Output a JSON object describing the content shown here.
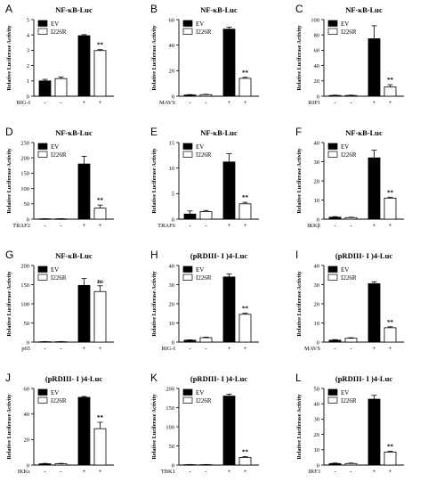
{
  "chart_data": [
    {
      "panel": "A",
      "type": "bar",
      "title": "NF-κB-Luc",
      "ylabel": "Relative Luciferase Activity",
      "ylim": [
        0,
        5
      ],
      "yticks": [
        0,
        1,
        2,
        3,
        4,
        5
      ],
      "treatment": "RIG-I",
      "signs": [
        "-",
        "-",
        "+",
        "+"
      ],
      "series": [
        {
          "name": "EV",
          "values": [
            1.0,
            3.95
          ],
          "errors": [
            0.1,
            0.07
          ],
          "fill": "black"
        },
        {
          "name": "I226R",
          "values": [
            1.15,
            2.98
          ],
          "errors": [
            0.1,
            0.06
          ],
          "fill": "white"
        }
      ],
      "significance": [
        "",
        "**"
      ]
    },
    {
      "panel": "B",
      "type": "bar",
      "title": "NF-κB-Luc",
      "ylabel": "Relative Luciferase Activity",
      "ylim": [
        0,
        60
      ],
      "yticks": [
        0,
        20,
        40,
        60
      ],
      "treatment": "MAVS",
      "signs": [
        "-",
        "-",
        "+",
        "+"
      ],
      "series": [
        {
          "name": "EV",
          "values": [
            1.0,
            52.5
          ],
          "errors": [
            0.3,
            1.5
          ],
          "fill": "black"
        },
        {
          "name": "I226R",
          "values": [
            1.2,
            14.0
          ],
          "errors": [
            0.3,
            0.8
          ],
          "fill": "white"
        }
      ],
      "significance": [
        "",
        "**"
      ]
    },
    {
      "panel": "C",
      "type": "bar",
      "title": "NF-κB-Luc",
      "ylabel": "Relative Luciferase Activity",
      "ylim": [
        0,
        100
      ],
      "yticks": [
        0,
        20,
        40,
        60,
        80,
        100
      ],
      "treatment": "RIP1",
      "signs": [
        "-",
        "-",
        "+",
        "+"
      ],
      "series": [
        {
          "name": "EV",
          "values": [
            1.0,
            75.0
          ],
          "errors": [
            0.4,
            17.0
          ],
          "fill": "black"
        },
        {
          "name": "I226R",
          "values": [
            1.0,
            12.0
          ],
          "errors": [
            0.4,
            3.0
          ],
          "fill": "white"
        }
      ],
      "significance": [
        "",
        "**"
      ]
    },
    {
      "panel": "D",
      "type": "bar",
      "title": "NF-κB-Luc",
      "ylabel": "Relative Luciferase Activity",
      "ylim": [
        0,
        250
      ],
      "yticks": [
        0,
        50,
        100,
        150,
        200,
        250
      ],
      "treatment": "TRAF2",
      "signs": [
        "-",
        "-",
        "+",
        "+"
      ],
      "series": [
        {
          "name": "EV",
          "values": [
            1.0,
            180.0
          ],
          "errors": [
            0.5,
            25.0
          ],
          "fill": "black"
        },
        {
          "name": "I226R",
          "values": [
            1.0,
            36.0
          ],
          "errors": [
            0.5,
            10.0
          ],
          "fill": "white"
        }
      ],
      "significance": [
        "",
        "**"
      ]
    },
    {
      "panel": "E",
      "type": "bar",
      "title": "NF-κB-Luc",
      "ylabel": "Relative Luciferase Activity",
      "ylim": [
        0,
        15
      ],
      "yticks": [
        0,
        5,
        10,
        15
      ],
      "treatment": "TRAF6",
      "signs": [
        "-",
        "-",
        "+",
        "+"
      ],
      "series": [
        {
          "name": "EV",
          "values": [
            1.0,
            11.2
          ],
          "errors": [
            0.6,
            1.6
          ],
          "fill": "black"
        },
        {
          "name": "I226R",
          "values": [
            1.5,
            3.0
          ],
          "errors": [
            0.2,
            0.3
          ],
          "fill": "white"
        }
      ],
      "significance": [
        "",
        "**"
      ]
    },
    {
      "panel": "F",
      "type": "bar",
      "title": "NF-κB-Luc",
      "ylabel": "Relative Luciferase Activity",
      "ylim": [
        0,
        40
      ],
      "yticks": [
        0,
        10,
        20,
        30,
        40
      ],
      "treatment": "IKKβ",
      "signs": [
        "-",
        "-",
        "+",
        "+"
      ],
      "series": [
        {
          "name": "EV",
          "values": [
            1.0,
            32.0
          ],
          "errors": [
            0.3,
            4.0
          ],
          "fill": "black"
        },
        {
          "name": "I226R",
          "values": [
            0.8,
            11.0
          ],
          "errors": [
            0.2,
            0.5
          ],
          "fill": "white"
        }
      ],
      "significance": [
        "",
        "**"
      ]
    },
    {
      "panel": "G",
      "type": "bar",
      "title": "NF-κB-Luc",
      "ylabel": "Relative Luciferase Activity",
      "ylim": [
        0,
        200
      ],
      "yticks": [
        0,
        50,
        100,
        150,
        200
      ],
      "treatment": "p65",
      "signs": [
        "-",
        "-",
        "+",
        "+"
      ],
      "series": [
        {
          "name": "EV",
          "values": [
            1.0,
            148.0
          ],
          "errors": [
            0.5,
            18.0
          ],
          "fill": "black"
        },
        {
          "name": "I226R",
          "values": [
            1.0,
            132.0
          ],
          "errors": [
            0.5,
            15.0
          ],
          "fill": "white"
        }
      ],
      "significance": [
        "",
        "ns"
      ]
    },
    {
      "panel": "H",
      "type": "bar",
      "title": "(pRDIII- I )4-Luc",
      "ylabel": "Relative Luciferase Activity",
      "ylim": [
        0,
        40
      ],
      "yticks": [
        0,
        10,
        20,
        30,
        40
      ],
      "treatment": "RIG-I",
      "signs": [
        "-",
        "-",
        "+",
        "+"
      ],
      "series": [
        {
          "name": "EV",
          "values": [
            1.0,
            34.0
          ],
          "errors": [
            0.2,
            1.5
          ],
          "fill": "black"
        },
        {
          "name": "I226R",
          "values": [
            2.3,
            14.5
          ],
          "errors": [
            0.3,
            0.6
          ],
          "fill": "white"
        }
      ],
      "significance": [
        "",
        "**"
      ]
    },
    {
      "panel": "I",
      "type": "bar",
      "title": "(pRDIII- I )4-Luc",
      "ylabel": "Relative Luciferase Activity",
      "ylim": [
        0,
        40
      ],
      "yticks": [
        0,
        10,
        20,
        30,
        40
      ],
      "treatment": "MAVS",
      "signs": [
        "-",
        "-",
        "+",
        "+"
      ],
      "series": [
        {
          "name": "EV",
          "values": [
            1.0,
            30.5
          ],
          "errors": [
            0.3,
            1.0
          ],
          "fill": "black"
        },
        {
          "name": "I226R",
          "values": [
            2.0,
            7.5
          ],
          "errors": [
            0.3,
            0.5
          ],
          "fill": "white"
        }
      ],
      "significance": [
        "",
        "**"
      ]
    },
    {
      "panel": "J",
      "type": "bar",
      "title": "(pRDIII- I )4-Luc",
      "ylabel": "Relative Luciferase Activity",
      "ylim": [
        0,
        60
      ],
      "yticks": [
        0,
        20,
        40,
        60
      ],
      "treatment": "IKKε",
      "signs": [
        "-",
        "-",
        "+",
        "+"
      ],
      "series": [
        {
          "name": "EV",
          "values": [
            1.0,
            53.0
          ],
          "errors": [
            0.3,
            0.7
          ],
          "fill": "black"
        },
        {
          "name": "I226R",
          "values": [
            1.0,
            28.5
          ],
          "errors": [
            0.3,
            5.0
          ],
          "fill": "white"
        }
      ],
      "significance": [
        "",
        "**"
      ]
    },
    {
      "panel": "K",
      "type": "bar",
      "title": "(pRDIII- I )4-Luc",
      "ylabel": "Relative Luciferase Activity",
      "ylim": [
        0,
        200
      ],
      "yticks": [
        0,
        50,
        100,
        150,
        200
      ],
      "treatment": "TBK1",
      "signs": [
        "-",
        "-",
        "+",
        "+"
      ],
      "series": [
        {
          "name": "EV",
          "values": [
            1.0,
            180.0
          ],
          "errors": [
            0.5,
            5.0
          ],
          "fill": "black"
        },
        {
          "name": "I226R",
          "values": [
            1.0,
            20.0
          ],
          "errors": [
            0.5,
            2.0
          ],
          "fill": "white"
        }
      ],
      "significance": [
        "",
        "**"
      ]
    },
    {
      "panel": "L",
      "type": "bar",
      "title": "(pRDIII- I )4-Luc",
      "ylabel": "Relative Luciferase Activity",
      "ylim": [
        0,
        50
      ],
      "yticks": [
        0,
        10,
        20,
        30,
        40,
        50
      ],
      "treatment": "IRF3",
      "signs": [
        "-",
        "-",
        "+",
        "+"
      ],
      "series": [
        {
          "name": "EV",
          "values": [
            1.0,
            43.0
          ],
          "errors": [
            0.3,
            2.5
          ],
          "fill": "black"
        },
        {
          "name": "I226R",
          "values": [
            1.0,
            8.5
          ],
          "errors": [
            0.3,
            0.5
          ],
          "fill": "white"
        }
      ],
      "significance": [
        "",
        "**"
      ]
    }
  ]
}
